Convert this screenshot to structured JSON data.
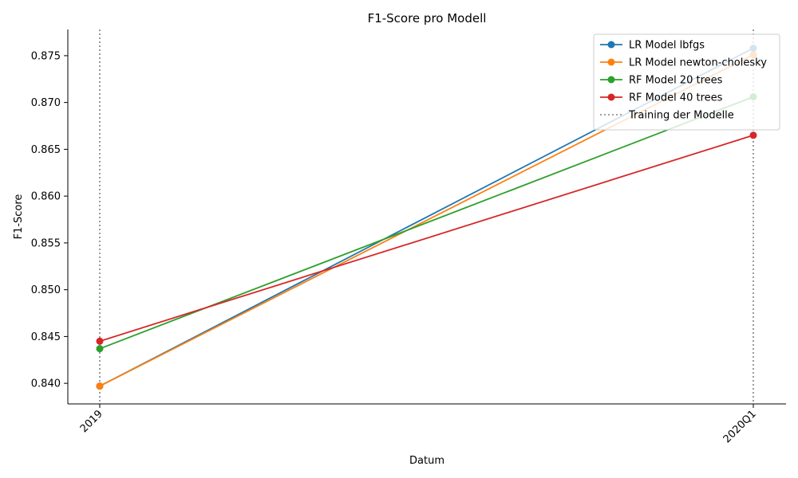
{
  "chart_data": {
    "type": "line",
    "title": "F1-Score pro Modell",
    "xlabel": "Datum",
    "ylabel": "F1-Score",
    "categories": [
      "2019",
      "2020Q1"
    ],
    "ylim": [
      0.8378,
      0.8778
    ],
    "yticks": [
      "0.840",
      "0.845",
      "0.850",
      "0.855",
      "0.860",
      "0.865",
      "0.870",
      "0.875"
    ],
    "series": [
      {
        "name": "LR Model lbfgs",
        "color": "#1f77b4",
        "values": [
          0.8397,
          0.8758
        ]
      },
      {
        "name": "LR Model newton-cholesky",
        "color": "#ff7f0e",
        "values": [
          0.8397,
          0.8751
        ]
      },
      {
        "name": "RF Model 20 trees",
        "color": "#2ca02c",
        "values": [
          0.8437,
          0.8706
        ]
      },
      {
        "name": "RF Model 40 trees",
        "color": "#d62728",
        "values": [
          0.8445,
          0.8665
        ]
      }
    ],
    "annotation": {
      "label": "Training der Modelle",
      "color": "#808080",
      "style": "dotted",
      "at": [
        "2019",
        "2020Q1"
      ]
    },
    "legend": "top-right",
    "grid": false
  }
}
